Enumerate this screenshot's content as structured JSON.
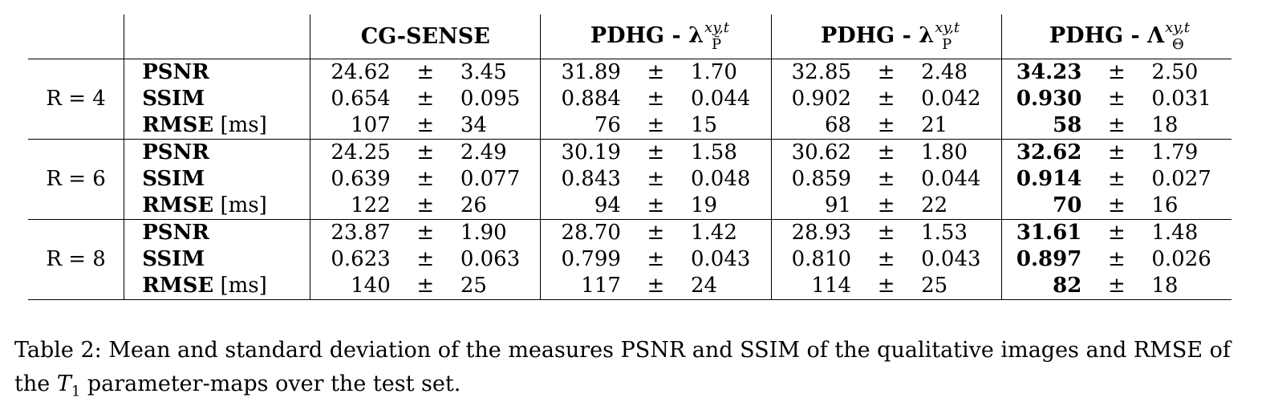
{
  "table": {
    "columns": [
      {
        "title": "CG-SENSE"
      },
      {
        "title": "PDHG - λ",
        "sup": "xy,t",
        "sub": "P̃"
      },
      {
        "title": "PDHG - λ",
        "sup": "xy,t",
        "sub": "P"
      },
      {
        "title": "PDHG - Λ",
        "sup": "xy,t",
        "sub": "Θ"
      }
    ],
    "pm": "±",
    "groups": [
      {
        "label": "R = 4",
        "rows": [
          {
            "measure": "PSNR",
            "unit": "",
            "cells": [
              [
                "24.62",
                "3.45"
              ],
              [
                "31.89",
                "1.70"
              ],
              [
                "32.85",
                "2.48"
              ],
              [
                "34.23",
                "2.50"
              ]
            ]
          },
          {
            "measure": "SSIM",
            "unit": "",
            "cells": [
              [
                "0.654",
                "0.095"
              ],
              [
                "0.884",
                "0.044"
              ],
              [
                "0.902",
                "0.042"
              ],
              [
                "0.930",
                "0.031"
              ]
            ]
          },
          {
            "measure": "RMSE",
            "unit": "[ms]",
            "cells": [
              [
                "107",
                "34"
              ],
              [
                "76",
                "15"
              ],
              [
                "68",
                "21"
              ],
              [
                "58",
                "18"
              ]
            ]
          }
        ]
      },
      {
        "label": "R = 6",
        "rows": [
          {
            "measure": "PSNR",
            "unit": "",
            "cells": [
              [
                "24.25",
                "2.49"
              ],
              [
                "30.19",
                "1.58"
              ],
              [
                "30.62",
                "1.80"
              ],
              [
                "32.62",
                "1.79"
              ]
            ]
          },
          {
            "measure": "SSIM",
            "unit": "",
            "cells": [
              [
                "0.639",
                "0.077"
              ],
              [
                "0.843",
                "0.048"
              ],
              [
                "0.859",
                "0.044"
              ],
              [
                "0.914",
                "0.027"
              ]
            ]
          },
          {
            "measure": "RMSE",
            "unit": "[ms]",
            "cells": [
              [
                "122",
                "26"
              ],
              [
                "94",
                "19"
              ],
              [
                "91",
                "22"
              ],
              [
                "70",
                "16"
              ]
            ]
          }
        ]
      },
      {
        "label": "R = 8",
        "rows": [
          {
            "measure": "PSNR",
            "unit": "",
            "cells": [
              [
                "23.87",
                "1.90"
              ],
              [
                "28.70",
                "1.42"
              ],
              [
                "28.93",
                "1.53"
              ],
              [
                "31.61",
                "1.48"
              ]
            ]
          },
          {
            "measure": "SSIM",
            "unit": "",
            "cells": [
              [
                "0.623",
                "0.063"
              ],
              [
                "0.799",
                "0.043"
              ],
              [
                "0.810",
                "0.043"
              ],
              [
                "0.897",
                "0.026"
              ]
            ]
          },
          {
            "measure": "RMSE",
            "unit": "[ms]",
            "cells": [
              [
                "140",
                "25"
              ],
              [
                "117",
                "24"
              ],
              [
                "114",
                "25"
              ],
              [
                "82",
                "18"
              ]
            ]
          }
        ]
      }
    ]
  },
  "caption": {
    "prefix": "Table 2: Mean and standard deviation of the measures PSNR and SSIM of the qualitative images and RMSE of the ",
    "symbol": "T",
    "subscript": "1",
    "suffix": " parameter-maps over the test set."
  }
}
